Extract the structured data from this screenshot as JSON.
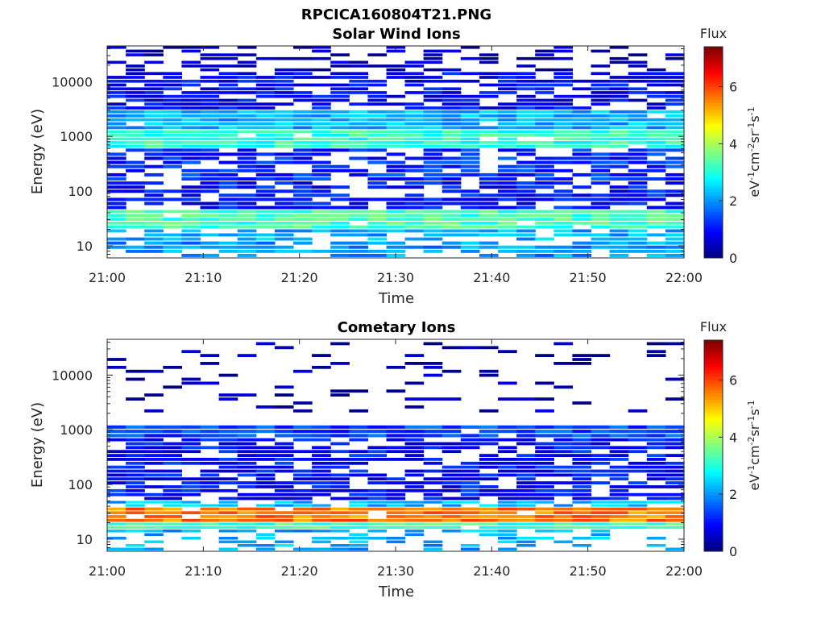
{
  "figure_title": "RPCICA160804T21.PNG",
  "chart_data": [
    {
      "type": "heatmap",
      "title": "Solar Wind Ions",
      "xlabel": "Time",
      "ylabel": "Energy (eV)",
      "x_ticks": [
        "21:00",
        "21:10",
        "21:20",
        "21:30",
        "21:40",
        "21:50",
        "22:00"
      ],
      "y_ticks": [
        "10",
        "100",
        "1000",
        "10000"
      ],
      "y_scale": "log",
      "colorbar": {
        "title": "Flux",
        "label": "eV-1cm-2sr-1s-1",
        "ticks": [
          "0",
          "2",
          "4",
          "6"
        ],
        "range": [
          0,
          7.4
        ],
        "colormap": "jet"
      },
      "x_range": [
        "21:00",
        "22:00"
      ],
      "y_range": [
        6,
        45000
      ],
      "time_bins": 31,
      "bands": [
        {
          "energy_range_eV": [
            15000,
            45000
          ],
          "log_flux": 0.4,
          "fill": "sparse"
        },
        {
          "energy_range_eV": [
            3000,
            15000
          ],
          "log_flux": 0.9,
          "fill": "partial"
        },
        {
          "energy_range_eV": [
            1300,
            3000
          ],
          "log_flux": 2.2,
          "fill": "full"
        },
        {
          "energy_range_eV": [
            600,
            1300
          ],
          "log_flux": 3.1,
          "fill": "full"
        },
        {
          "energy_range_eV": [
            150,
            600
          ],
          "log_flux": 1.2,
          "fill": "partial"
        },
        {
          "energy_range_eV": [
            45,
            150
          ],
          "log_flux": 1.0,
          "fill": "partial"
        },
        {
          "energy_range_eV": [
            20,
            45
          ],
          "log_flux": 3.2,
          "fill": "full"
        },
        {
          "energy_range_eV": [
            12,
            20
          ],
          "log_flux": 2.2,
          "fill": "partial"
        },
        {
          "energy_range_eV": [
            6,
            12
          ],
          "log_flux": 2.0,
          "fill": "partial"
        }
      ]
    },
    {
      "type": "heatmap",
      "title": "Cometary Ions",
      "xlabel": "Time",
      "ylabel": "Energy (eV)",
      "x_ticks": [
        "21:00",
        "21:10",
        "21:20",
        "21:30",
        "21:40",
        "21:50",
        "22:00"
      ],
      "y_ticks": [
        "10",
        "100",
        "1000",
        "10000"
      ],
      "y_scale": "log",
      "colorbar": {
        "title": "Flux",
        "label": "eV-1cm-2sr-1s-1",
        "ticks": [
          "0",
          "2",
          "4",
          "6"
        ],
        "range": [
          0,
          7.4
        ],
        "colormap": "jet"
      },
      "x_range": [
        "21:00",
        "22:00"
      ],
      "y_range": [
        6,
        45000
      ],
      "time_bins": 31,
      "bands": [
        {
          "energy_range_eV": [
            2000,
            40000
          ],
          "log_flux": 0.3,
          "fill": "very sparse"
        },
        {
          "energy_range_eV": [
            700,
            1200
          ],
          "log_flux": 1.4,
          "fill": "full"
        },
        {
          "energy_range_eV": [
            50,
            700
          ],
          "log_flux": 1.0,
          "fill": "partial"
        },
        {
          "energy_range_eV": [
            38,
            50
          ],
          "log_flux": 2.3,
          "fill": "partial"
        },
        {
          "energy_range_eV": [
            20,
            38
          ],
          "log_flux": 5.6,
          "fill": "full"
        },
        {
          "energy_range_eV": [
            15,
            20
          ],
          "log_flux": 3.2,
          "fill": "full"
        },
        {
          "energy_range_eV": [
            6,
            15
          ],
          "log_flux": 2.2,
          "fill": "sparse"
        }
      ]
    }
  ]
}
